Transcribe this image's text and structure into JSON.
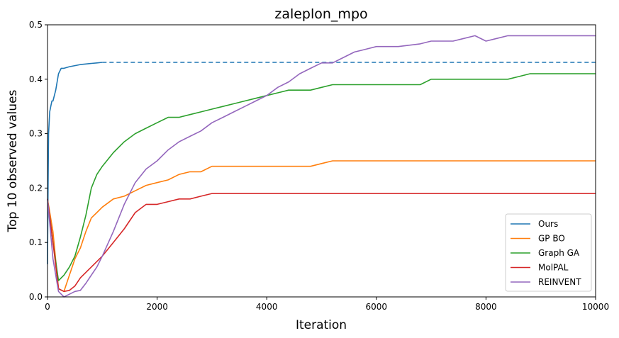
{
  "chart_data": {
    "type": "line",
    "title": "zaleplon_mpo",
    "xlabel": "Iteration",
    "ylabel": "Top 10 observed values",
    "xlim": [
      0,
      10000
    ],
    "ylim": [
      0,
      0.5
    ],
    "xticks": [
      0,
      2000,
      4000,
      6000,
      8000,
      10000
    ],
    "yticks": [
      0.0,
      0.1,
      0.2,
      0.3,
      0.4,
      0.5
    ],
    "xtick_labels": [
      "0",
      "2000",
      "4000",
      "6000",
      "8000",
      "10000"
    ],
    "ytick_labels": [
      "0.0",
      "0.1",
      "0.2",
      "0.3",
      "0.4",
      "0.5"
    ],
    "grid": false,
    "legend_position": "lower-right",
    "series": [
      {
        "name": "Ours",
        "color": "#1f77b4",
        "x": [
          0,
          10,
          20,
          40,
          60,
          80,
          100,
          150,
          200,
          250,
          300,
          400,
          500,
          600,
          700,
          800,
          900,
          1000
        ],
        "y": [
          0.06,
          0.2,
          0.3,
          0.34,
          0.35,
          0.36,
          0.36,
          0.38,
          0.41,
          0.42,
          0.42,
          0.423,
          0.425,
          0.427,
          0.428,
          0.429,
          0.43,
          0.431
        ],
        "dashed_extension": {
          "x": [
            1000,
            10000
          ],
          "y": [
            0.431,
            0.431
          ]
        }
      },
      {
        "name": "GP BO",
        "color": "#ff7f0e",
        "x": [
          0,
          100,
          200,
          300,
          400,
          500,
          600,
          700,
          800,
          900,
          1000,
          1200,
          1400,
          1600,
          1800,
          2000,
          2200,
          2400,
          2600,
          2800,
          3000,
          3200,
          4000,
          4800,
          5000,
          5200,
          6000,
          7000,
          8000,
          9000,
          10000
        ],
        "y": [
          0.18,
          0.12,
          0.015,
          0.01,
          0.04,
          0.07,
          0.09,
          0.12,
          0.145,
          0.155,
          0.165,
          0.18,
          0.185,
          0.195,
          0.205,
          0.21,
          0.215,
          0.225,
          0.23,
          0.23,
          0.24,
          0.24,
          0.24,
          0.24,
          0.245,
          0.25,
          0.25,
          0.25,
          0.25,
          0.25,
          0.25
        ]
      },
      {
        "name": "Graph GA",
        "color": "#2ca02c",
        "x": [
          0,
          100,
          200,
          300,
          400,
          500,
          600,
          700,
          800,
          900,
          1000,
          1200,
          1400,
          1600,
          1800,
          2000,
          2200,
          2400,
          2600,
          2800,
          3000,
          3200,
          3400,
          3600,
          3800,
          4000,
          4200,
          4400,
          4600,
          4800,
          5000,
          5200,
          6000,
          6800,
          7000,
          8000,
          8400,
          8600,
          8800,
          9000,
          10000
        ],
        "y": [
          0.18,
          0.1,
          0.03,
          0.04,
          0.055,
          0.075,
          0.11,
          0.15,
          0.2,
          0.225,
          0.24,
          0.265,
          0.285,
          0.3,
          0.31,
          0.32,
          0.33,
          0.33,
          0.335,
          0.34,
          0.345,
          0.35,
          0.355,
          0.36,
          0.365,
          0.37,
          0.375,
          0.38,
          0.38,
          0.38,
          0.385,
          0.39,
          0.39,
          0.39,
          0.4,
          0.4,
          0.4,
          0.405,
          0.41,
          0.41,
          0.41
        ]
      },
      {
        "name": "MolPAL",
        "color": "#d62728",
        "x": [
          0,
          100,
          200,
          300,
          400,
          500,
          600,
          700,
          800,
          900,
          1000,
          1200,
          1400,
          1600,
          1800,
          2000,
          2200,
          2400,
          2600,
          2800,
          3000,
          4000,
          5000,
          6000,
          7000,
          8000,
          9000,
          10000
        ],
        "y": [
          0.18,
          0.1,
          0.015,
          0.01,
          0.012,
          0.02,
          0.035,
          0.045,
          0.055,
          0.065,
          0.075,
          0.1,
          0.125,
          0.155,
          0.17,
          0.17,
          0.175,
          0.18,
          0.18,
          0.185,
          0.19,
          0.19,
          0.19,
          0.19,
          0.19,
          0.19,
          0.19,
          0.19
        ]
      },
      {
        "name": "REINVENT",
        "color": "#9467bd",
        "x": [
          0,
          100,
          200,
          300,
          400,
          500,
          600,
          700,
          800,
          900,
          1000,
          1200,
          1400,
          1600,
          1800,
          2000,
          2200,
          2400,
          2600,
          2800,
          3000,
          3200,
          3400,
          3600,
          3800,
          4000,
          4200,
          4400,
          4600,
          4800,
          5000,
          5200,
          5400,
          5600,
          5800,
          6000,
          6400,
          6800,
          7000,
          7400,
          7600,
          7800,
          8000,
          8200,
          8400,
          8800,
          9200,
          9600,
          10000
        ],
        "y": [
          0.18,
          0.07,
          0.01,
          0.0,
          0.005,
          0.01,
          0.012,
          0.025,
          0.04,
          0.055,
          0.075,
          0.12,
          0.17,
          0.21,
          0.235,
          0.25,
          0.27,
          0.285,
          0.295,
          0.305,
          0.32,
          0.33,
          0.34,
          0.35,
          0.36,
          0.37,
          0.385,
          0.395,
          0.41,
          0.42,
          0.43,
          0.43,
          0.44,
          0.45,
          0.455,
          0.46,
          0.46,
          0.465,
          0.47,
          0.47,
          0.475,
          0.48,
          0.47,
          0.475,
          0.48,
          0.48,
          0.48,
          0.48,
          0.48
        ]
      }
    ]
  }
}
